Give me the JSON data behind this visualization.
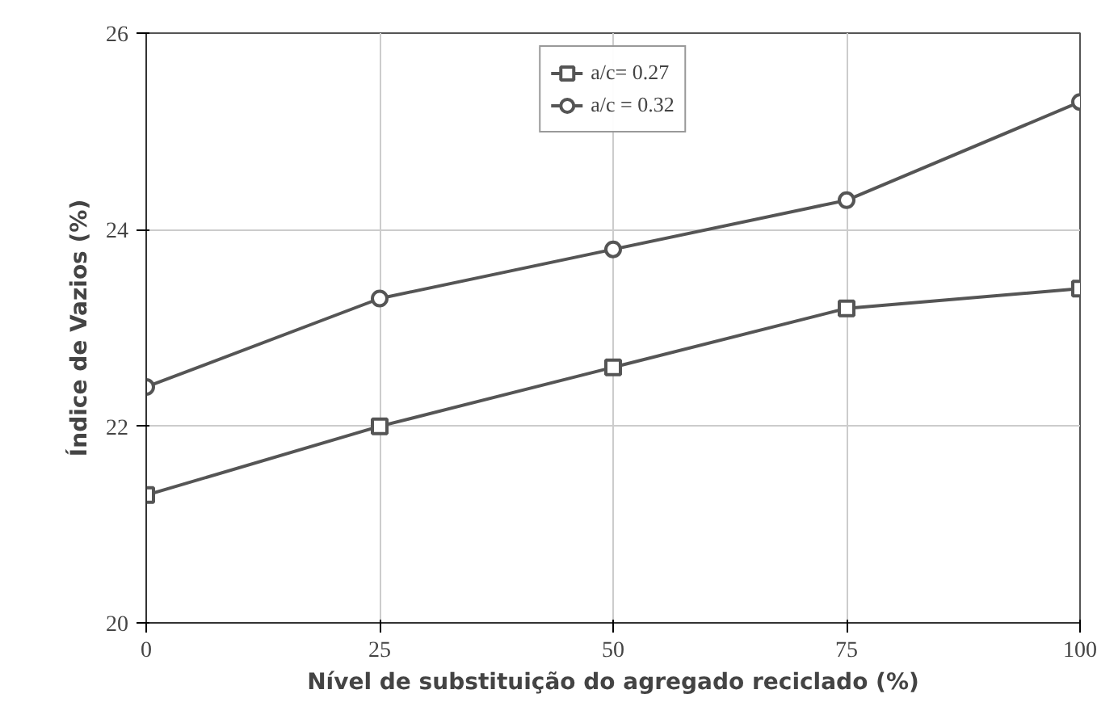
{
  "chart_data": {
    "type": "line",
    "xlabel": "Nível de substituição do agregado reciclado (%)",
    "ylabel": "Índice de Vazios (%)",
    "x": [
      0,
      25,
      50,
      75,
      100
    ],
    "series": [
      {
        "name": "a/c= 0.27",
        "color": "#555555",
        "marker": "square",
        "values": [
          21.3,
          22.0,
          22.6,
          23.2,
          23.4
        ]
      },
      {
        "name": "a/c = 0.32",
        "color": "#555555",
        "marker": "circle",
        "values": [
          22.4,
          23.3,
          23.8,
          24.3,
          25.3
        ]
      }
    ],
    "xlim": [
      0,
      100
    ],
    "xticks": [
      0,
      25,
      50,
      75,
      100
    ],
    "ylim": [
      20,
      26
    ],
    "yticks": [
      20,
      22,
      24,
      26
    ],
    "grid": true,
    "legend": "top",
    "line_style": "solid"
  }
}
